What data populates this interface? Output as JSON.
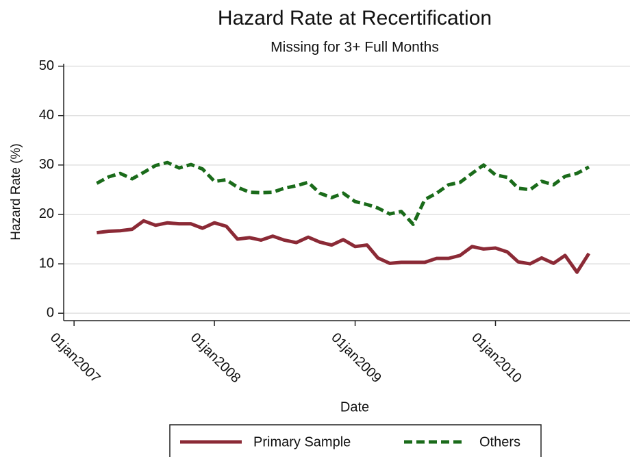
{
  "chart_data": {
    "type": "line",
    "title": "Hazard Rate at Recertification",
    "subtitle": "Missing for 3+ Full Months",
    "x_label": "Date",
    "y_label": "Hazard Rate (%)",
    "x": [
      "2007-03-01",
      "2007-04-01",
      "2007-05-01",
      "2007-06-01",
      "2007-07-01",
      "2007-08-01",
      "2007-09-01",
      "2007-10-01",
      "2007-11-01",
      "2007-12-01",
      "2008-01-01",
      "2008-02-01",
      "2008-03-01",
      "2008-04-01",
      "2008-05-01",
      "2008-06-01",
      "2008-07-01",
      "2008-08-01",
      "2008-09-01",
      "2008-10-01",
      "2008-11-01",
      "2008-12-01",
      "2009-01-01",
      "2009-02-01",
      "2009-03-01",
      "2009-04-01",
      "2009-05-01",
      "2009-06-01",
      "2009-07-01",
      "2009-08-01",
      "2009-09-01",
      "2009-10-01",
      "2009-11-01",
      "2009-12-01",
      "2010-01-01",
      "2010-02-01",
      "2010-03-01",
      "2010-04-01",
      "2010-05-01",
      "2010-06-01",
      "2010-07-01",
      "2010-08-01",
      "2010-09-01"
    ],
    "series": [
      {
        "name": "Primary Sample",
        "color": "#8b2a36",
        "dash": "solid",
        "values": [
          16.3,
          16.6,
          16.7,
          17.0,
          18.7,
          17.8,
          18.3,
          18.1,
          18.1,
          17.2,
          18.3,
          17.6,
          15.0,
          15.3,
          14.8,
          15.6,
          14.8,
          14.3,
          15.4,
          14.4,
          13.8,
          14.9,
          13.5,
          13.8,
          11.2,
          10.1,
          10.3,
          10.3,
          10.3,
          11.1,
          11.1,
          11.7,
          13.5,
          13.0,
          13.2,
          12.4,
          10.4,
          10.0,
          11.2,
          10.1,
          11.7,
          8.3,
          12.1
        ]
      },
      {
        "name": "Others",
        "color": "#1a6b1a",
        "dash": "dashed",
        "values": [
          26.3,
          27.6,
          28.3,
          27.2,
          28.5,
          29.9,
          30.5,
          29.4,
          30.1,
          29.2,
          26.7,
          27.0,
          25.5,
          24.5,
          24.4,
          24.5,
          25.3,
          25.8,
          26.5,
          24.3,
          23.4,
          24.3,
          22.6,
          22.0,
          21.3,
          20.1,
          20.6,
          18.0,
          23.0,
          24.3,
          26.0,
          26.5,
          28.3,
          30.0,
          28.0,
          27.5,
          25.3,
          25.0,
          26.7,
          26.0,
          27.7,
          28.3,
          29.6
        ]
      }
    ],
    "xlim": [
      "2006-12-05",
      "2010-12-17"
    ],
    "xticks": [
      {
        "value": "2007-01-01",
        "label": "01jan2007"
      },
      {
        "value": "2008-01-01",
        "label": "01jan2008"
      },
      {
        "value": "2009-01-01",
        "label": "01jan2009"
      },
      {
        "value": "2010-01-01",
        "label": "01jan2010"
      }
    ],
    "ylim": [
      -1.5,
      50.5
    ],
    "yticks": [
      0,
      10,
      20,
      30,
      40,
      50
    ],
    "grid": true,
    "legend": "bottom"
  }
}
